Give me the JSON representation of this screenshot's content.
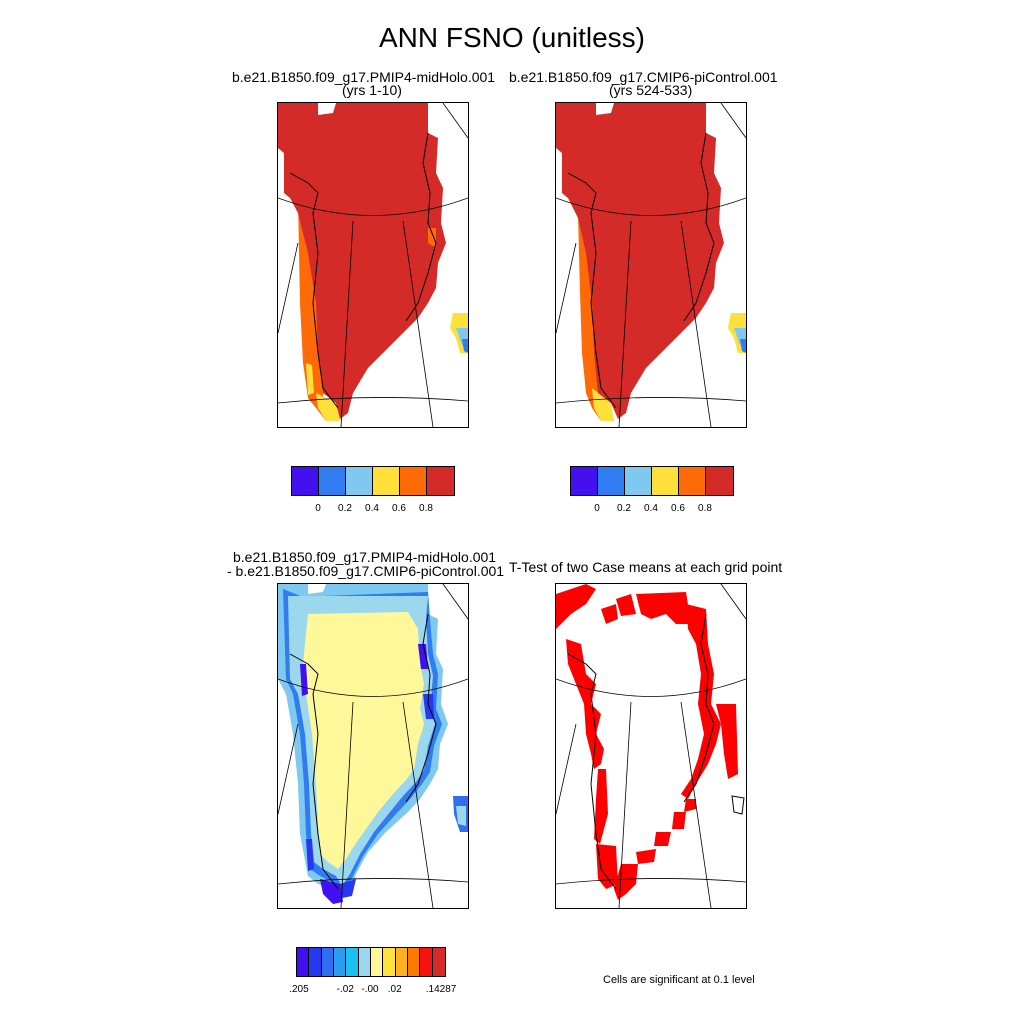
{
  "figure": {
    "title": "ANN FSNO (unitless)"
  },
  "panels": {
    "case1": {
      "title": "b.e21.B1850.f09_g17.PMIP4-midHolo.001",
      "subtitle": "(yrs 1-10)"
    },
    "case2": {
      "title": "b.e21.B1850.f09_g17.CMIP6-piControl.001",
      "subtitle": "(yrs 524-533)"
    },
    "diff": {
      "title": "b.e21.B1850.f09_g17.PMIP4-midHolo.001",
      "subtitle": "- b.e21.B1850.f09_g17.CMIP6-piControl.001"
    },
    "ttest": {
      "title": "T-Test of two Case means at each grid point",
      "note": "Cells are significant at 0.1 level"
    }
  },
  "legends": {
    "abs": {
      "colors": [
        "#4410f0",
        "#2f7df0",
        "#7fc8ef",
        "#fee03b",
        "#fd6a07",
        "#d42b29"
      ],
      "tick_labels": [
        "0",
        "0.2",
        "0.4",
        "0.6",
        "0.8"
      ]
    },
    "diff": {
      "colors": [
        "#4010f0",
        "#2838f0",
        "#2f6ef0",
        "#2c9cf0",
        "#1cc0f0",
        "#9bd8ee",
        "#fff89a",
        "#ffe13b",
        "#ffb020",
        "#ff7a00",
        "#f4130f",
        "#d42b29"
      ],
      "tick_labels": [
        ".205",
        "-.02",
        "-.00",
        ".02",
        ".14287"
      ]
    }
  },
  "chart_data": {
    "type": "map",
    "variable": "FSNO",
    "units": "unitless",
    "season": "ANN",
    "legend_abs_range": [
      0,
      1
    ],
    "legend_diff_labels": [
      ".205",
      "-.02",
      "-.00",
      ".02",
      ".14287"
    ],
    "significance_color": "#ff0000"
  }
}
